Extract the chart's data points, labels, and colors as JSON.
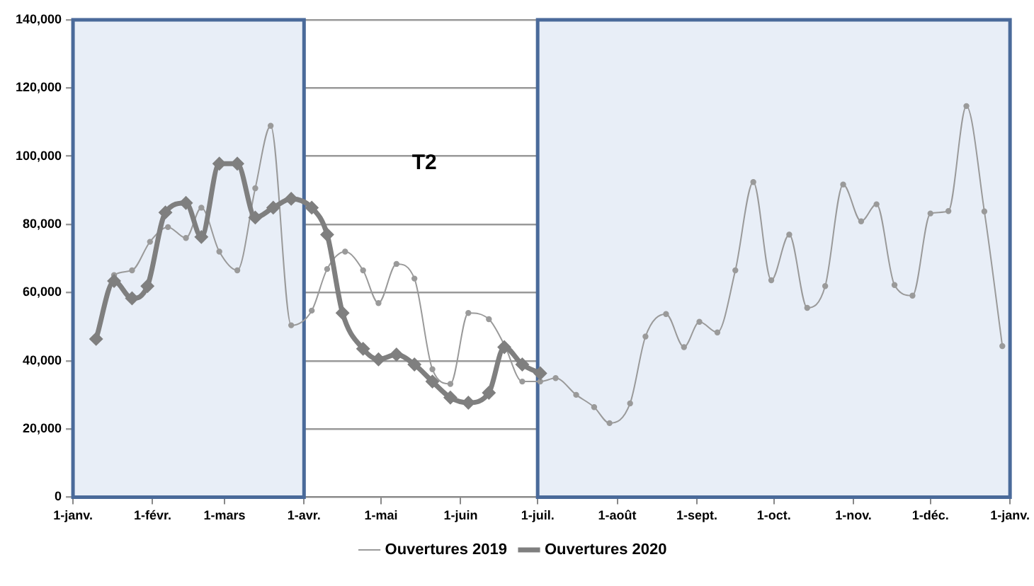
{
  "chart_data": {
    "type": "line",
    "series": [
      {
        "name": "Ouvertures 2019",
        "color": "#9a9a9a",
        "marker": "circle",
        "x": [
          "2019-01-10",
          "2019-01-17",
          "2019-01-24",
          "2019-01-31",
          "2019-02-07",
          "2019-02-14",
          "2019-02-20",
          "2019-02-27",
          "2019-03-06",
          "2019-03-13",
          "2019-03-19",
          "2019-03-27",
          "2019-04-04",
          "2019-04-10",
          "2019-04-17",
          "2019-04-24",
          "2019-04-30",
          "2019-05-07",
          "2019-05-14",
          "2019-05-21",
          "2019-05-28",
          "2019-06-04",
          "2019-06-12",
          "2019-06-18",
          "2019-06-25",
          "2019-07-02",
          "2019-07-08",
          "2019-07-16",
          "2019-07-23",
          "2019-07-29",
          "2019-08-06",
          "2019-08-12",
          "2019-08-20",
          "2019-08-27",
          "2019-09-02",
          "2019-09-09",
          "2019-09-16",
          "2019-09-23",
          "2019-09-30",
          "2019-10-07",
          "2019-10-14",
          "2019-10-21",
          "2019-10-28",
          "2019-11-04",
          "2019-11-10",
          "2019-11-17",
          "2019-11-24",
          "2019-12-01",
          "2019-12-08",
          "2019-12-15",
          "2019-12-22",
          "2019-12-29"
        ],
        "values": [
          46400,
          65100,
          66500,
          74900,
          79200,
          76000,
          84900,
          72000,
          66500,
          90600,
          108900,
          50400,
          54700,
          66900,
          72000,
          66500,
          56900,
          68400,
          64100,
          37500,
          33200,
          54000,
          52200,
          44700,
          33900,
          33900,
          34900,
          30000,
          26400,
          21700,
          27500,
          47100,
          53700,
          44000,
          51400,
          48300,
          66500,
          92400,
          63600,
          77000,
          55500,
          61900,
          91700,
          80900,
          85900,
          62200,
          59100,
          83200,
          83900,
          114700,
          83800,
          44300
        ]
      },
      {
        "name": "Ouvertures 2020",
        "color": "#7f7f7f",
        "marker": "diamond",
        "x": [
          "2019-01-10",
          "2019-01-17",
          "2019-01-24",
          "2019-01-30",
          "2019-02-06",
          "2019-02-14",
          "2019-02-20",
          "2019-02-27",
          "2019-03-06",
          "2019-03-13",
          "2019-03-20",
          "2019-03-27",
          "2019-04-04",
          "2019-04-10",
          "2019-04-16",
          "2019-04-24",
          "2019-04-30",
          "2019-05-07",
          "2019-05-14",
          "2019-05-21",
          "2019-05-28",
          "2019-06-04",
          "2019-06-12",
          "2019-06-18",
          "2019-06-25",
          "2019-07-02"
        ],
        "values": [
          46400,
          63400,
          58300,
          61900,
          83500,
          86300,
          76300,
          97800,
          97800,
          82000,
          84900,
          87500,
          84900,
          77000,
          54000,
          43500,
          40400,
          41800,
          38900,
          33900,
          29200,
          27700,
          30600,
          44000,
          38900,
          36300
        ]
      }
    ],
    "xlim": [
      "2019-01-01",
      "2020-01-01"
    ],
    "xticks": [
      {
        "value": "2019-01-01",
        "label": "1-janv."
      },
      {
        "value": "2019-02-01",
        "label": "1-févr."
      },
      {
        "value": "2019-03-01",
        "label": "1-mars"
      },
      {
        "value": "2019-04-01",
        "label": "1-avr."
      },
      {
        "value": "2019-05-01",
        "label": "1-mai"
      },
      {
        "value": "2019-06-01",
        "label": "1-juin"
      },
      {
        "value": "2019-07-01",
        "label": "1-juil."
      },
      {
        "value": "2019-08-01",
        "label": "1-août"
      },
      {
        "value": "2019-09-01",
        "label": "1-sept."
      },
      {
        "value": "2019-10-01",
        "label": "1-oct."
      },
      {
        "value": "2019-11-01",
        "label": "1-nov."
      },
      {
        "value": "2019-12-01",
        "label": "1-déc."
      },
      {
        "value": "2020-01-01",
        "label": "1-janv."
      }
    ],
    "ylim": [
      0,
      140000
    ],
    "yticks": [
      0,
      {
        "value": 20000,
        "label": "20,000"
      },
      {
        "value": 40000,
        "label": "40,000"
      },
      {
        "value": 60000,
        "label": "60,000"
      },
      {
        "value": 80000,
        "label": "80,000"
      },
      {
        "value": 100000,
        "label": "100,000"
      },
      {
        "value": 120000,
        "label": "120,000"
      },
      {
        "value": 140000,
        "label": "140,000"
      }
    ],
    "bands": [
      {
        "axis": "x",
        "from": "2019-01-01",
        "to": "2019-04-01",
        "color": "#e8eef7"
      },
      {
        "axis": "x",
        "from": "2019-07-01",
        "to": "2020-01-01",
        "color": "#e8eef7"
      }
    ],
    "annotations": [
      "T2"
    ],
    "grid": "y",
    "legend": "bottom"
  }
}
